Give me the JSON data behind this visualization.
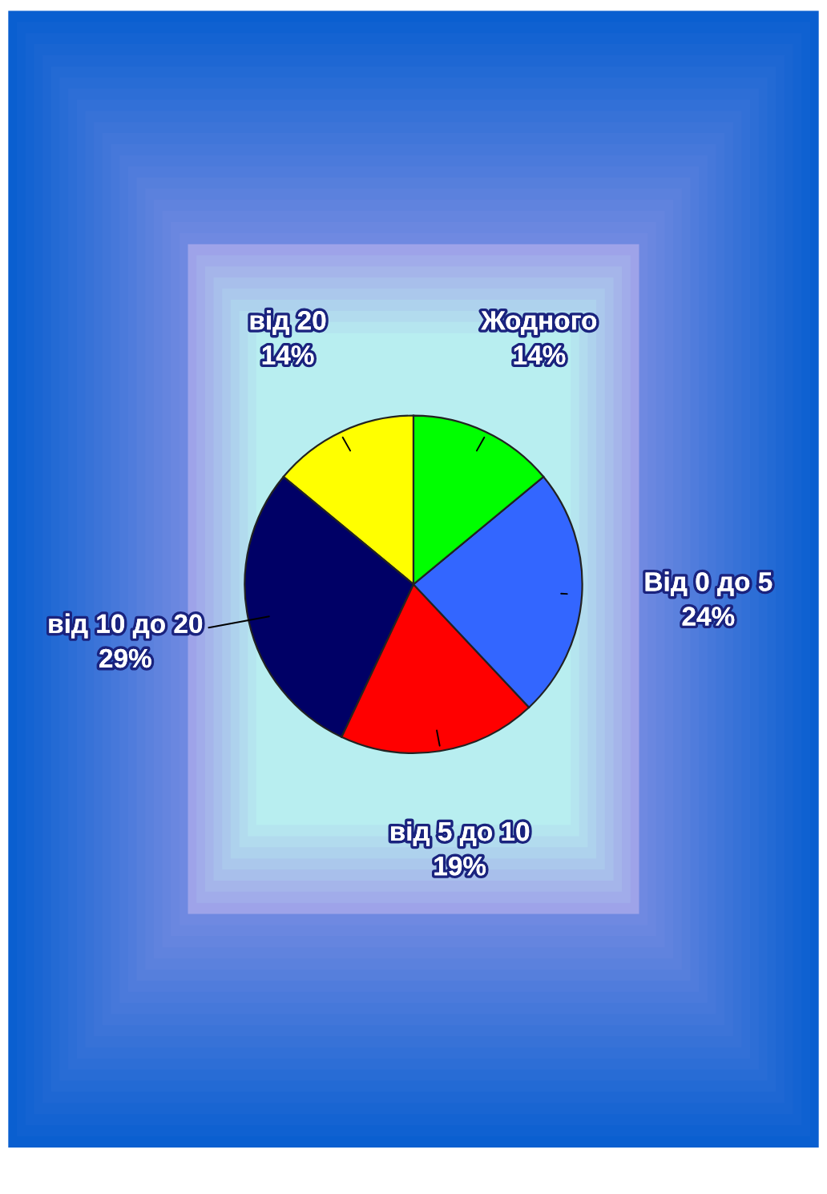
{
  "chart_data": {
    "type": "pie",
    "categories": [
      "від 20",
      "від 10 до 20",
      "від 5 до 10",
      "Від 0 до 5",
      "Жодного"
    ],
    "values": [
      14,
      29,
      19,
      24,
      14
    ],
    "value_labels": [
      "14%",
      "29%",
      "19%",
      "24%",
      "14%"
    ],
    "colors": [
      "#ffff00",
      "#000066",
      "#ff0000",
      "#3366ff",
      "#00ff00"
    ],
    "legend": false
  }
}
